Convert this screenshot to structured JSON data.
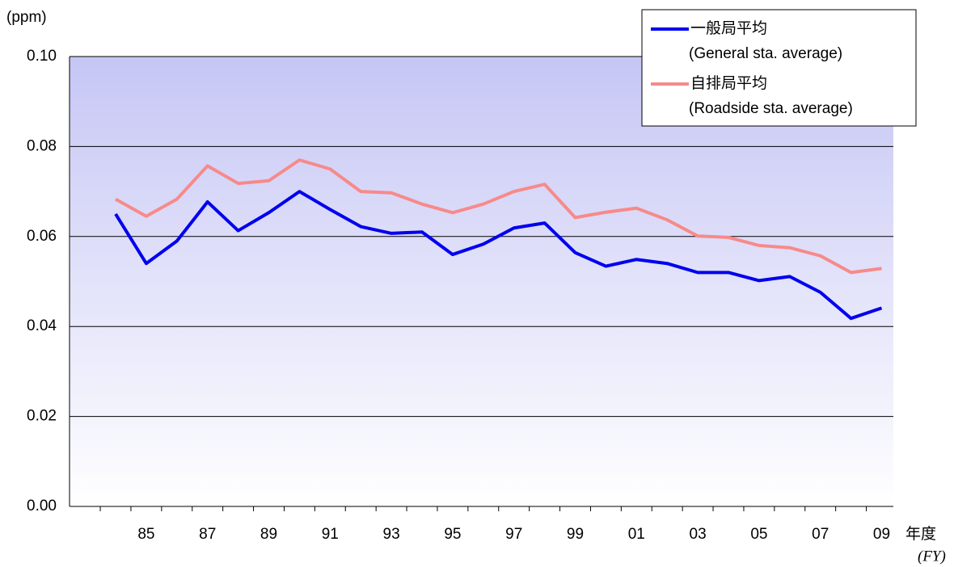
{
  "chart_data": {
    "type": "line",
    "y_unit": "(ppm)",
    "x_label": "年度",
    "x_label_en": "(FY)",
    "categories": [
      null,
      "85",
      null,
      "87",
      null,
      "89",
      null,
      "91",
      null,
      "93",
      null,
      "95",
      null,
      "97",
      null,
      "99",
      null,
      "01",
      null,
      "03",
      null,
      "05",
      null,
      "07",
      null,
      "09"
    ],
    "series": [
      {
        "name": "一般局平均",
        "subtitle": "(General sta. average)",
        "color": "#0000ee",
        "values": [
          0.065,
          0.054,
          0.059,
          0.0677,
          0.0613,
          0.0653,
          0.07,
          0.066,
          0.0622,
          0.0607,
          0.061,
          0.056,
          0.0583,
          0.0619,
          0.063,
          0.0564,
          0.0534,
          0.0549,
          0.054,
          0.052,
          0.052,
          0.0502,
          0.0511,
          0.0476,
          0.0418,
          0.0441
        ]
      },
      {
        "name": "自排局平均",
        "subtitle": "(Roadside sta. average)",
        "color": "#f78a8a",
        "values": [
          0.0683,
          0.0645,
          0.0683,
          0.0757,
          0.0718,
          0.0724,
          0.077,
          0.075,
          0.07,
          0.0697,
          0.0672,
          0.0653,
          0.0672,
          0.07,
          0.0716,
          0.0642,
          0.0654,
          0.0663,
          0.0637,
          0.0601,
          0.0598,
          0.058,
          0.0575,
          0.0557,
          0.052,
          0.0529
        ]
      }
    ],
    "ylim": [
      0,
      0.1
    ],
    "yticks": [
      {
        "value": 0,
        "label": "0.00"
      },
      {
        "value": 0.02,
        "label": "0.02"
      },
      {
        "value": 0.04,
        "label": "0.04"
      },
      {
        "value": 0.06,
        "label": "0.06"
      },
      {
        "value": 0.08,
        "label": "0.08"
      },
      {
        "value": 0.1,
        "label": "0.10"
      }
    ],
    "grid": true
  }
}
